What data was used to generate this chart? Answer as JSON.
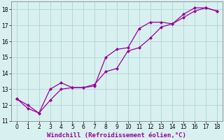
{
  "line1_x": [
    0,
    1,
    2,
    3,
    4,
    5,
    6,
    7,
    8,
    9,
    10,
    11,
    12,
    13,
    14,
    15,
    16,
    17,
    18
  ],
  "line1_y": [
    12.4,
    11.8,
    11.5,
    13.0,
    13.4,
    13.1,
    13.1,
    13.2,
    15.0,
    15.5,
    15.6,
    16.8,
    17.2,
    17.2,
    17.1,
    17.7,
    18.1,
    18.1,
    17.9
  ],
  "line2_x": [
    0,
    1,
    2,
    3,
    4,
    5,
    6,
    7,
    8,
    9,
    10,
    11,
    12,
    13,
    14,
    15,
    16,
    17,
    18
  ],
  "line2_y": [
    12.4,
    12.0,
    11.5,
    12.3,
    13.0,
    13.1,
    13.1,
    13.3,
    14.1,
    14.3,
    15.4,
    15.6,
    16.2,
    16.9,
    17.1,
    17.5,
    17.9,
    18.1,
    17.9
  ],
  "line_color": "#990099",
  "bg_color": "#d8f0f0",
  "grid_color": "#b0d4d4",
  "xlabel": "Windchill (Refroidissement éolien,°C)",
  "xlim": [
    -0.5,
    18.5
  ],
  "ylim": [
    11,
    18.5
  ],
  "xticks": [
    0,
    1,
    2,
    3,
    4,
    5,
    6,
    7,
    8,
    9,
    10,
    11,
    12,
    13,
    14,
    15,
    16,
    17,
    18
  ],
  "yticks": [
    11,
    12,
    13,
    14,
    15,
    16,
    17,
    18
  ],
  "marker": "D",
  "markersize": 2.0,
  "linewidth": 0.9,
  "xlabel_fontsize": 6.5,
  "tick_fontsize": 5.5
}
